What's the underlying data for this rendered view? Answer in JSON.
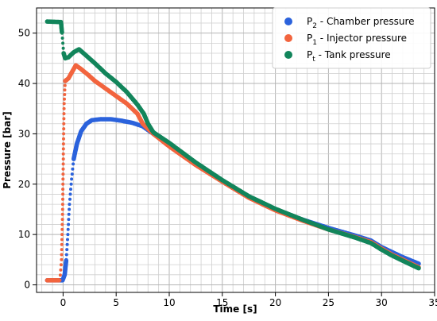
{
  "chart_data": {
    "type": "scatter",
    "xlabel": "Time [s]",
    "ylabel": "Pressure [bar]",
    "xlim": [
      -2.5,
      35
    ],
    "ylim": [
      -1.5,
      55
    ],
    "x_ticks": [
      0,
      5,
      10,
      15,
      20,
      25,
      30,
      35
    ],
    "y_ticks": [
      0,
      10,
      20,
      30,
      40,
      50
    ],
    "grid": true,
    "legend_position": "top-right",
    "series": [
      {
        "name_main": "P",
        "name_sub": "2",
        "name_rest": " - Chamber pressure",
        "color": "#2b62dc",
        "points": [
          [
            -1.5,
            0.9
          ],
          [
            -0.5,
            0.9
          ],
          [
            -0.05,
            0.9
          ],
          [
            0.15,
            2
          ],
          [
            0.3,
            5
          ],
          [
            0.45,
            10
          ],
          [
            0.6,
            16
          ],
          [
            0.8,
            21
          ],
          [
            1.0,
            25
          ],
          [
            1.3,
            28
          ],
          [
            1.7,
            30.5
          ],
          [
            2.2,
            32
          ],
          [
            2.7,
            32.7
          ],
          [
            3.5,
            32.9
          ],
          [
            4.5,
            32.9
          ],
          [
            5.5,
            32.6
          ],
          [
            6.5,
            32.2
          ],
          [
            7.5,
            31.5
          ],
          [
            8.5,
            30
          ],
          [
            10,
            27.8
          ],
          [
            12.5,
            24.1
          ],
          [
            15,
            20.7
          ],
          [
            17.5,
            17.5
          ],
          [
            20,
            15.0
          ],
          [
            22.5,
            13.0
          ],
          [
            25,
            11.3
          ],
          [
            27.5,
            9.8
          ],
          [
            29,
            8.8
          ],
          [
            30,
            7.5
          ],
          [
            31,
            6.5
          ],
          [
            32,
            5.5
          ],
          [
            33.5,
            4.2
          ]
        ]
      },
      {
        "name_main": "P",
        "name_sub": "1",
        "name_rest": " - Injector pressure",
        "color": "#f2643e",
        "points": [
          [
            -1.5,
            0.9
          ],
          [
            -0.3,
            0.9
          ],
          [
            -0.15,
            5
          ],
          [
            -0.05,
            14
          ],
          [
            0.0,
            22
          ],
          [
            0.05,
            30
          ],
          [
            0.1,
            36
          ],
          [
            0.2,
            40.5
          ],
          [
            0.5,
            41
          ],
          [
            0.9,
            42.5
          ],
          [
            1.2,
            43.6
          ],
          [
            1.6,
            43
          ],
          [
            2.2,
            42
          ],
          [
            3.0,
            40.5
          ],
          [
            4.0,
            39
          ],
          [
            5.0,
            37.5
          ],
          [
            6.0,
            36
          ],
          [
            7.0,
            34
          ],
          [
            7.5,
            32
          ],
          [
            8.5,
            30
          ],
          [
            10,
            27.5
          ],
          [
            12.5,
            23.8
          ],
          [
            15,
            20.5
          ],
          [
            17.5,
            17.3
          ],
          [
            20,
            14.8
          ],
          [
            22.5,
            12.8
          ],
          [
            25,
            11.0
          ],
          [
            27.5,
            9.5
          ],
          [
            29,
            8.5
          ],
          [
            30,
            7.2
          ],
          [
            31,
            6.0
          ],
          [
            32,
            5.0
          ],
          [
            33.5,
            3.5
          ]
        ]
      },
      {
        "name_main": "P",
        "name_sub": "t",
        "name_rest": " - Tank pressure",
        "color": "#12855b",
        "points": [
          [
            -1.5,
            52.3
          ],
          [
            -0.2,
            52.2
          ],
          [
            -0.1,
            50
          ],
          [
            0.05,
            46
          ],
          [
            0.2,
            45
          ],
          [
            0.5,
            45.2
          ],
          [
            1.0,
            46.2
          ],
          [
            1.5,
            46.8
          ],
          [
            2.2,
            45.5
          ],
          [
            3.0,
            44
          ],
          [
            4.0,
            42
          ],
          [
            5.0,
            40.3
          ],
          [
            6.0,
            38.3
          ],
          [
            7.0,
            35.8
          ],
          [
            7.6,
            34
          ],
          [
            8.0,
            32
          ],
          [
            8.5,
            30.3
          ],
          [
            10,
            28.2
          ],
          [
            12.5,
            24.3
          ],
          [
            15,
            20.8
          ],
          [
            17.5,
            17.6
          ],
          [
            20,
            15.1
          ],
          [
            22.5,
            13.0
          ],
          [
            25,
            11.0
          ],
          [
            27.5,
            9.4
          ],
          [
            29,
            8.3
          ],
          [
            30,
            7.0
          ],
          [
            31,
            5.8
          ],
          [
            32,
            4.8
          ],
          [
            33.5,
            3.3
          ]
        ]
      }
    ]
  }
}
